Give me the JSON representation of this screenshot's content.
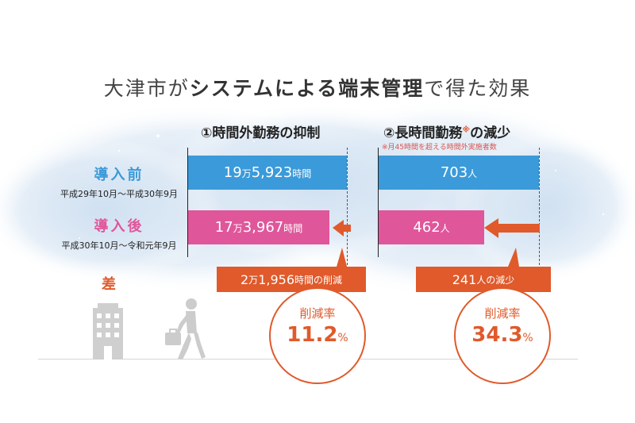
{
  "title": {
    "pre": "大津市が",
    "bold": "システムによる端末管理",
    "post": "で得た効果"
  },
  "left_section": {
    "title": "①時間外勤務の抑制"
  },
  "right_section": {
    "title_main": "②長時間勤務",
    "title_mark": "※",
    "title_post": "の減少",
    "note": "※月45時間を超える時間外実施者数"
  },
  "rows": [
    {
      "label": "導入前",
      "period": "平成29年10月〜平成30年9月",
      "color": "#3b9ad9"
    },
    {
      "label": "導入後",
      "period": "平成30年10月〜令和元年9月",
      "color": "#e0569b"
    }
  ],
  "diff_label": "差",
  "chart_data": [
    {
      "type": "bar",
      "title": "①時間外勤務の抑制",
      "categories": [
        "導入前",
        "導入後"
      ],
      "values": [
        195923,
        173967
      ],
      "value_labels": [
        {
          "a": "19",
          "m": "万",
          "b": "5,923",
          "u": "時間"
        },
        {
          "a": "17",
          "m": "万",
          "b": "3,967",
          "u": "時間"
        }
      ],
      "difference": {
        "a": "2",
        "m": "万",
        "b": "1,956",
        "u": "時間の削減"
      },
      "reduction_rate": {
        "label": "削減率",
        "value": "11.2",
        "unit": "%"
      }
    },
    {
      "type": "bar",
      "title": "②長時間勤務の減少",
      "categories": [
        "導入前",
        "導入後"
      ],
      "values": [
        703,
        462
      ],
      "value_labels": [
        {
          "a": "703",
          "m": "",
          "b": "",
          "u": "人"
        },
        {
          "a": "462",
          "m": "",
          "b": "",
          "u": "人"
        }
      ],
      "difference": {
        "a": "241",
        "m": "",
        "b": "",
        "u": "人の減少"
      },
      "reduction_rate": {
        "label": "削減率",
        "value": "34.3",
        "unit": "%"
      }
    }
  ],
  "colors": {
    "before": "#3b9ad9",
    "after": "#e0569b",
    "accent": "#e05a2b"
  },
  "icons": [
    "moon-icon",
    "building-icon",
    "walking-person-icon"
  ]
}
